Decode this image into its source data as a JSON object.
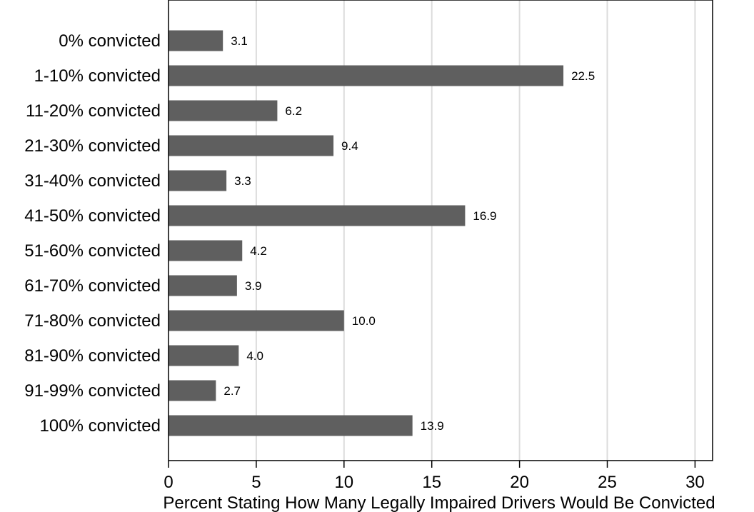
{
  "chart_data": {
    "type": "bar",
    "orientation": "horizontal",
    "categories": [
      "0% convicted",
      "1-10% convicted",
      "11-20% convicted",
      "21-30% convicted",
      "31-40% convicted",
      "41-50% convicted",
      "51-60% convicted",
      "61-70% convicted",
      "71-80% convicted",
      "81-90% convicted",
      "91-99% convicted",
      "100% convicted"
    ],
    "values": [
      3.1,
      22.5,
      6.2,
      9.4,
      3.3,
      16.9,
      4.2,
      3.9,
      10.0,
      4.0,
      2.7,
      13.9
    ],
    "value_labels": [
      "3.1",
      "22.5",
      "6.2",
      "9.4",
      "3.3",
      "16.9",
      "4.2",
      "3.9",
      "10.0",
      "4.0",
      "2.7",
      "13.9"
    ],
    "xlabel": "Percent Stating How Many Legally Impaired Drivers Would Be Convicted",
    "xlim": [
      0,
      31
    ],
    "xticks": [
      0,
      5,
      10,
      15,
      20,
      25,
      30
    ],
    "xtick_labels": [
      "0",
      "5",
      "10",
      "15",
      "20",
      "25",
      "30"
    ],
    "grid": "vertical",
    "bar_color": "#5f5f5f",
    "grid_color": "#dcdcdc"
  }
}
